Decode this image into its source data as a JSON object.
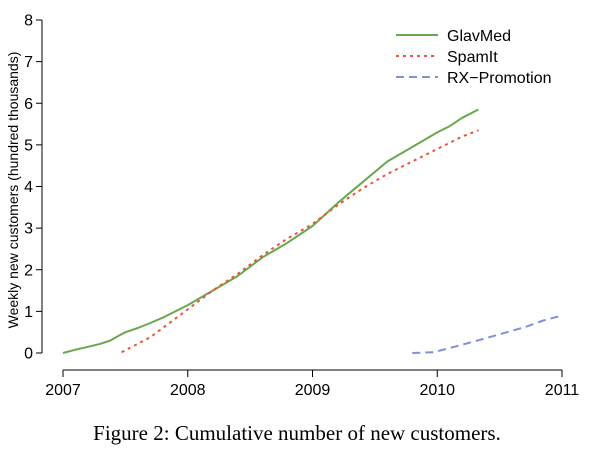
{
  "caption": "Figure 2: Cumulative number of new customers.",
  "chart_data": {
    "type": "line",
    "title": "",
    "xlabel": "",
    "ylabel": "Weekly new customers (hundred thousands)",
    "xlim": [
      2007,
      2011
    ],
    "ylim": [
      0,
      8
    ],
    "x_ticks": [
      "2007",
      "2008",
      "2009",
      "2010",
      "2011"
    ],
    "y_ticks": [
      "0",
      "1",
      "2",
      "3",
      "4",
      "5",
      "6",
      "7",
      "8"
    ],
    "grid": false,
    "legend_position": "top-right",
    "series": [
      {
        "name": "GlavMed",
        "color": "#6aa84f",
        "style": "solid",
        "x": [
          2007.0,
          2007.1,
          2007.2,
          2007.3,
          2007.38,
          2007.45,
          2007.5,
          2007.6,
          2007.7,
          2007.8,
          2007.9,
          2008.0,
          2008.2,
          2008.4,
          2008.6,
          2008.8,
          2009.0,
          2009.2,
          2009.4,
          2009.6,
          2009.8,
          2010.0,
          2010.1,
          2010.2,
          2010.33
        ],
        "y": [
          0.0,
          0.08,
          0.15,
          0.22,
          0.3,
          0.42,
          0.5,
          0.6,
          0.72,
          0.85,
          1.0,
          1.15,
          1.5,
          1.85,
          2.3,
          2.65,
          3.05,
          3.6,
          4.1,
          4.6,
          4.95,
          5.3,
          5.45,
          5.65,
          5.85
        ]
      },
      {
        "name": "SpamIt",
        "color": "#e8553a",
        "style": "dotted",
        "x": [
          2007.47,
          2007.6,
          2007.7,
          2007.8,
          2008.0,
          2008.2,
          2008.4,
          2008.6,
          2008.8,
          2009.0,
          2009.2,
          2009.4,
          2009.6,
          2009.8,
          2010.0,
          2010.2,
          2010.33
        ],
        "y": [
          0.02,
          0.22,
          0.38,
          0.6,
          1.05,
          1.5,
          1.9,
          2.35,
          2.75,
          3.1,
          3.55,
          3.95,
          4.3,
          4.6,
          4.9,
          5.2,
          5.35
        ]
      },
      {
        "name": "RX−Promotion",
        "color": "#8092d4",
        "style": "dashed",
        "x": [
          2009.8,
          2009.97,
          2010.1,
          2010.3,
          2010.5,
          2010.7,
          2010.85,
          2011.0
        ],
        "y": [
          0.0,
          0.02,
          0.12,
          0.28,
          0.45,
          0.62,
          0.78,
          0.9
        ]
      }
    ]
  }
}
